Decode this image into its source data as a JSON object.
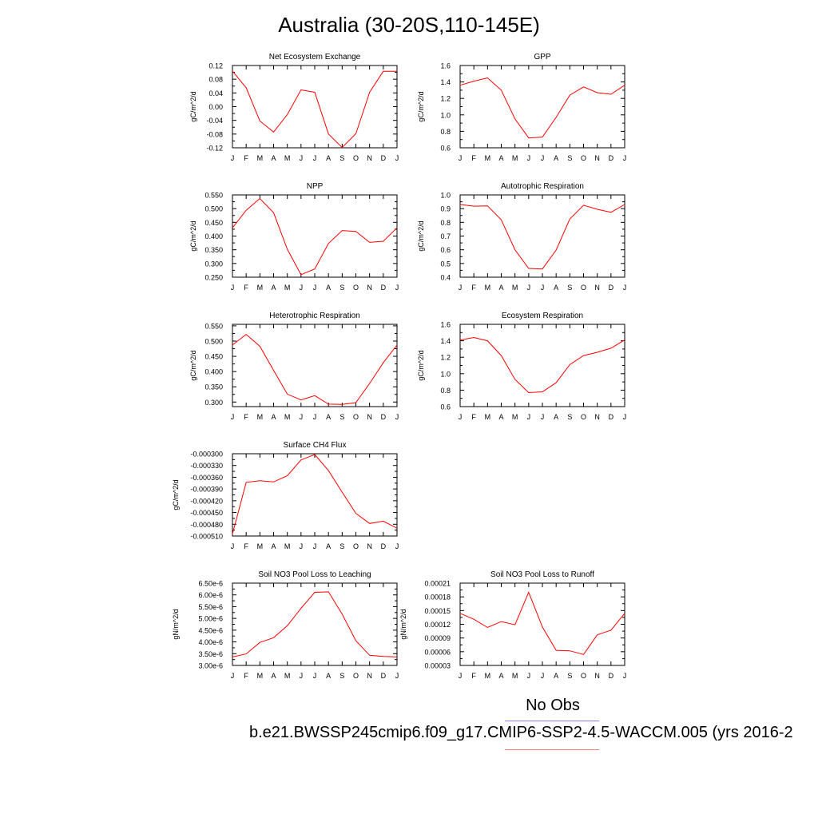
{
  "page": {
    "title": "Australia (30-20S,110-145E)",
    "legend": {
      "obs_label": "No Obs",
      "obs_color": "#7f7fff",
      "case_label": "b.e21.BWSSP245cmip6.f09_g17.CMIP6-SSP2-4.5-WACCM.005 (yrs 2016-2",
      "case_color": "#ff7f7f"
    }
  },
  "chart_data": [
    {
      "type": "line",
      "title": "Net Ecosystem Exchange",
      "ylabel": "gC/m^2/d",
      "xlabel": "",
      "categories": [
        "J",
        "F",
        "M",
        "A",
        "M",
        "J",
        "J",
        "A",
        "S",
        "O",
        "N",
        "D",
        "J"
      ],
      "ylim": [
        -0.12,
        0.12
      ],
      "yticks": [
        "0.12",
        "0.08",
        "0.04",
        "0.00",
        "-0.04",
        "-0.08",
        "-0.12"
      ],
      "series": [
        {
          "color": "#ff0000",
          "values": [
            0.104,
            0.055,
            -0.042,
            -0.074,
            -0.023,
            0.049,
            0.042,
            -0.08,
            -0.119,
            -0.079,
            0.042,
            0.103,
            0.103
          ]
        }
      ]
    },
    {
      "type": "line",
      "title": "GPP",
      "ylabel": "gC/m^2/d",
      "xlabel": "",
      "categories": [
        "J",
        "F",
        "M",
        "A",
        "M",
        "J",
        "J",
        "A",
        "S",
        "O",
        "N",
        "D",
        "J"
      ],
      "ylim": [
        0.6,
        1.6
      ],
      "yticks": [
        "1.6",
        "1.4",
        "1.2",
        "1.0",
        "0.8",
        "0.6"
      ],
      "series": [
        {
          "color": "#ff0000",
          "values": [
            1.36,
            1.41,
            1.45,
            1.3,
            0.95,
            0.72,
            0.73,
            0.97,
            1.24,
            1.34,
            1.27,
            1.25,
            1.36
          ]
        }
      ]
    },
    {
      "type": "line",
      "title": "NPP",
      "ylabel": "gC/m^2/d",
      "xlabel": "",
      "categories": [
        "J",
        "F",
        "M",
        "A",
        "M",
        "J",
        "J",
        "A",
        "S",
        "O",
        "N",
        "D",
        "J"
      ],
      "ylim": [
        0.25,
        0.55
      ],
      "yticks": [
        "0.550",
        "0.500",
        "0.450",
        "0.400",
        "0.350",
        "0.300",
        "0.250"
      ],
      "series": [
        {
          "color": "#ff0000",
          "values": [
            0.43,
            0.494,
            0.537,
            0.485,
            0.352,
            0.259,
            0.28,
            0.373,
            0.42,
            0.417,
            0.377,
            0.381,
            0.43
          ]
        }
      ]
    },
    {
      "type": "line",
      "title": "Autotrophic Respiration",
      "ylabel": "gC/m^2/d",
      "xlabel": "",
      "categories": [
        "J",
        "F",
        "M",
        "A",
        "M",
        "J",
        "J",
        "A",
        "S",
        "O",
        "N",
        "D",
        "J"
      ],
      "ylim": [
        0.4,
        1.0
      ],
      "yticks": [
        "1.0",
        "0.9",
        "0.8",
        "0.7",
        "0.6",
        "0.5",
        "0.4"
      ],
      "series": [
        {
          "color": "#ff0000",
          "values": [
            0.93,
            0.918,
            0.92,
            0.818,
            0.6,
            0.464,
            0.46,
            0.598,
            0.824,
            0.925,
            0.895,
            0.873,
            0.93
          ]
        }
      ]
    },
    {
      "type": "line",
      "title": "Heterotrophic Respiration",
      "ylabel": "gC/m^2/d",
      "xlabel": "",
      "categories": [
        "J",
        "F",
        "M",
        "A",
        "M",
        "J",
        "J",
        "A",
        "S",
        "O",
        "N",
        "D",
        "J"
      ],
      "ylim": [
        0.285,
        0.555
      ],
      "yticks": [
        "0.550",
        "0.500",
        "0.450",
        "0.400",
        "0.350",
        "0.300"
      ],
      "series": [
        {
          "color": "#ff0000",
          "values": [
            0.487,
            0.522,
            0.483,
            0.404,
            0.326,
            0.307,
            0.321,
            0.293,
            0.292,
            0.298,
            0.361,
            0.429,
            0.487
          ]
        }
      ]
    },
    {
      "type": "line",
      "title": "Ecosystem Respiration",
      "ylabel": "gC/m^2/d",
      "xlabel": "",
      "categories": [
        "J",
        "F",
        "M",
        "A",
        "M",
        "J",
        "J",
        "A",
        "S",
        "O",
        "N",
        "D",
        "J"
      ],
      "ylim": [
        0.6,
        1.6
      ],
      "yticks": [
        "1.6",
        "1.4",
        "1.2",
        "1.0",
        "0.8",
        "0.6"
      ],
      "series": [
        {
          "color": "#ff0000",
          "values": [
            1.41,
            1.44,
            1.4,
            1.22,
            0.93,
            0.77,
            0.78,
            0.89,
            1.11,
            1.22,
            1.26,
            1.31,
            1.41
          ]
        }
      ]
    },
    {
      "type": "line",
      "title": "Surface CH4 Flux",
      "ylabel": "gC/m^2/d",
      "xlabel": "",
      "categories": [
        "J",
        "F",
        "M",
        "A",
        "M",
        "J",
        "J",
        "A",
        "S",
        "O",
        "N",
        "D",
        "J"
      ],
      "ylim": [
        -0.00051,
        -0.0003
      ],
      "yticks": [
        "-0.000300",
        "-0.000330",
        "-0.000360",
        "-0.000390",
        "-0.000420",
        "-0.000450",
        "-0.000480",
        "-0.000510"
      ],
      "series": [
        {
          "color": "#ff0000",
          "values": [
            -0.000505,
            -0.000373,
            -0.000369,
            -0.000372,
            -0.000356,
            -0.000316,
            -0.000302,
            -0.000343,
            -0.000398,
            -0.000452,
            -0.000478,
            -0.000472,
            -0.00049
          ]
        }
      ]
    },
    {
      "type": "line",
      "title": "Soil NO3 Pool Loss to Leaching",
      "ylabel": "gN/m^2/d",
      "xlabel": "",
      "categories": [
        "J",
        "F",
        "M",
        "A",
        "M",
        "J",
        "J",
        "A",
        "S",
        "O",
        "N",
        "D",
        "J"
      ],
      "ylim": [
        3e-06,
        6.5e-06
      ],
      "yticks": [
        "6.50e-6",
        "6.00e-6",
        "5.50e-6",
        "5.00e-6",
        "4.50e-6",
        "4.00e-6",
        "3.50e-6",
        "3.00e-6"
      ],
      "series": [
        {
          "color": "#ff0000",
          "values": [
            3.36e-06,
            3.49e-06,
            3.98e-06,
            4.18e-06,
            4.69e-06,
            5.43e-06,
            6.11e-06,
            6.13e-06,
            5.18e-06,
            4.05e-06,
            3.43e-06,
            3.38e-06,
            3.36e-06
          ]
        }
      ]
    },
    {
      "type": "line",
      "title": "Soil NO3 Pool Loss to Runoff",
      "ylabel": "gN/m^2/d",
      "xlabel": "",
      "categories": [
        "J",
        "F",
        "M",
        "A",
        "M",
        "J",
        "J",
        "A",
        "S",
        "O",
        "N",
        "D",
        "J"
      ],
      "ylim": [
        3e-05,
        0.00021
      ],
      "yticks": [
        "0.00021",
        "0.00018",
        "0.00015",
        "0.00012",
        "0.00009",
        "0.00006",
        "0.00003"
      ],
      "series": [
        {
          "color": "#ff0000",
          "values": [
            0.000144,
            0.000131,
            0.000113,
            0.000126,
            0.000119,
            0.00019,
            0.000114,
            6.3e-05,
            6.2e-05,
            5.4e-05,
            9.7e-05,
            0.000107,
            0.000144
          ]
        }
      ]
    }
  ]
}
